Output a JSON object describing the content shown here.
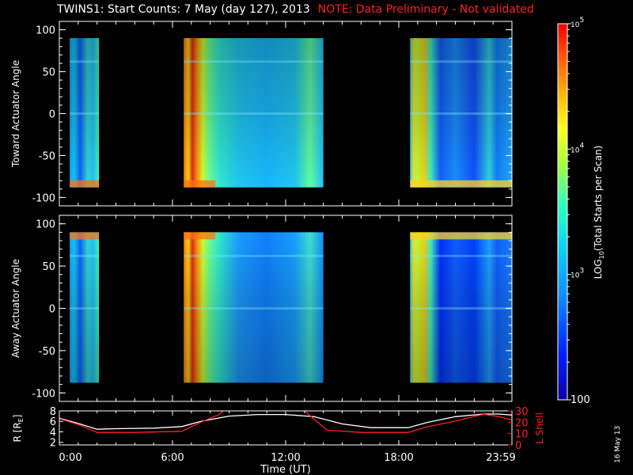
{
  "title": {
    "main": "TWINS1: Start Counts:  7 May (day 127), 2013",
    "note": "NOTE: Data Preliminary - Not validated"
  },
  "footer_date": "16 May 13",
  "colors": {
    "background": "#000000",
    "axes": "#ffffff",
    "note": "#ff2020",
    "lshell": "#ff2020",
    "r_line": "#ffffff"
  },
  "chart_data": [
    {
      "type": "heatmap",
      "ylabel": "Toward Actuator Angle",
      "yticks": [
        "100",
        "50",
        "0",
        "-50",
        "-100"
      ],
      "ylim": [
        -110,
        110
      ],
      "xlim": [
        0,
        24
      ],
      "data_range_y": [
        -88,
        90
      ],
      "data_segments_hours": [
        [
          0.55,
          2.1
        ],
        [
          6.6,
          14.0
        ],
        [
          18.6,
          24.0
        ]
      ],
      "colormap": "rainbow (blue=low, red=high), log scale",
      "profile": [
        [
          0.55,
          "#1aa0ff"
        ],
        [
          0.8,
          "#12c8f0"
        ],
        [
          1.1,
          "#1060ff"
        ],
        [
          1.5,
          "#30d8d0"
        ],
        [
          1.8,
          "#22c0ff"
        ],
        [
          2.1,
          "#40ffb0"
        ],
        [
          6.6,
          "#ff8010"
        ],
        [
          6.85,
          "#ffd010"
        ],
        [
          7.05,
          "#e03010"
        ],
        [
          7.3,
          "#ff9010"
        ],
        [
          7.6,
          "#d0ff30"
        ],
        [
          8.0,
          "#60ffa0"
        ],
        [
          8.5,
          "#30e8d0"
        ],
        [
          9.5,
          "#20c8f0"
        ],
        [
          11.0,
          "#18b8ff"
        ],
        [
          12.5,
          "#20c8f0"
        ],
        [
          13.3,
          "#60ffa0"
        ],
        [
          14.0,
          "#20c0ff"
        ],
        [
          18.6,
          "#30d8e0"
        ],
        [
          18.8,
          "#ffe020"
        ],
        [
          19.0,
          "#b0ff40"
        ],
        [
          19.3,
          "#ffd010"
        ],
        [
          19.7,
          "#40f0c0"
        ],
        [
          20.2,
          "#1060ff"
        ],
        [
          21.0,
          "#1a90ff"
        ],
        [
          22.0,
          "#1050ff"
        ],
        [
          22.8,
          "#30d0e0"
        ],
        [
          23.2,
          "#1080ff"
        ],
        [
          24.0,
          "#20a8ff"
        ]
      ],
      "extreme_side": "bottom"
    },
    {
      "type": "heatmap",
      "ylabel": "Away Actuator Angle",
      "yticks": [
        "100",
        "50",
        "0",
        "-50",
        "-100"
      ],
      "ylim": [
        -110,
        110
      ],
      "xlim": [
        0,
        24
      ],
      "data_range_y": [
        -88,
        90
      ],
      "data_segments_hours": [
        [
          0.55,
          2.1
        ],
        [
          6.6,
          14.0
        ],
        [
          18.6,
          24.0
        ]
      ],
      "colormap": "rainbow (blue=low, red=high), log scale",
      "profile": [
        [
          0.55,
          "#1aa0ff"
        ],
        [
          0.8,
          "#12c8f0"
        ],
        [
          1.1,
          "#1060ff"
        ],
        [
          1.5,
          "#30d8d0"
        ],
        [
          1.8,
          "#22c0ff"
        ],
        [
          2.1,
          "#40ffb0"
        ],
        [
          6.6,
          "#ff8010"
        ],
        [
          6.85,
          "#ffd010"
        ],
        [
          7.05,
          "#e03010"
        ],
        [
          7.3,
          "#ff9010"
        ],
        [
          7.6,
          "#d0ff30"
        ],
        [
          8.0,
          "#60ffa0"
        ],
        [
          8.5,
          "#30e8d0"
        ],
        [
          9.5,
          "#1a9cff"
        ],
        [
          11.0,
          "#1080ff"
        ],
        [
          12.5,
          "#18a0ff"
        ],
        [
          13.3,
          "#40e0d0"
        ],
        [
          14.0,
          "#1090ff"
        ],
        [
          18.6,
          "#30d8e0"
        ],
        [
          18.8,
          "#ffe020"
        ],
        [
          19.0,
          "#b0ff40"
        ],
        [
          19.3,
          "#ffd010"
        ],
        [
          19.7,
          "#40f0c0"
        ],
        [
          20.2,
          "#0030ff"
        ],
        [
          21.0,
          "#1060ff"
        ],
        [
          22.0,
          "#0040ff"
        ],
        [
          22.8,
          "#20a0ff"
        ],
        [
          23.2,
          "#1060ff"
        ],
        [
          24.0,
          "#1880ff"
        ]
      ],
      "extreme_side": "top"
    },
    {
      "type": "line",
      "ylabel": "R [R",
      "ylabel_sub": "E",
      "ylabel_tail": "]",
      "yticks": [
        "8",
        "6",
        "4",
        "2"
      ],
      "ylim": [
        1.5,
        8.0
      ],
      "y2label": "L Shell",
      "y2ticks": [
        "30",
        "20",
        "10",
        "0"
      ],
      "y2lim": [
        0,
        30
      ],
      "xlabel": "Time (UT)",
      "xticks": [
        "0:00",
        "6:00",
        "12:00",
        "18:00",
        "23:59"
      ],
      "xlim": [
        0,
        24
      ],
      "series": [
        {
          "axis": "left",
          "x": [
            0,
            1,
            2,
            3,
            5,
            6.5,
            7.5,
            9,
            10.5,
            12,
            13.5,
            15,
            16.5,
            18.5,
            19.5,
            21,
            22.5,
            23.3,
            24
          ],
          "y": [
            6.6,
            5.6,
            4.5,
            4.6,
            4.7,
            5.0,
            6.0,
            7.0,
            7.3,
            7.3,
            6.9,
            5.5,
            4.8,
            4.8,
            5.8,
            6.9,
            7.4,
            7.4,
            7.2
          ]
        },
        {
          "axis": "right",
          "x": [
            0,
            1,
            2,
            4,
            6.5,
            7.5,
            8.5,
            9.2,
            12.5,
            13.2,
            14.2,
            16,
            18.5,
            19.5,
            21,
            22.5,
            23.3,
            24
          ],
          "y": [
            23,
            18,
            11,
            11,
            12,
            20,
            27,
            40,
            40,
            27,
            13,
            11,
            11,
            16,
            21,
            27,
            25,
            22
          ]
        }
      ]
    },
    {
      "type": "colorbar",
      "label": "LOG",
      "label_sub": "10",
      "label_tail": "(Total Starts per Scan)",
      "scale": "log",
      "range": [
        100,
        100000
      ],
      "ticks": [
        {
          "value": 100000,
          "base": "10",
          "exp": "5"
        },
        {
          "value": 10000,
          "base": "10",
          "exp": "4"
        },
        {
          "value": 1000,
          "base": "10",
          "exp": "3"
        },
        {
          "value": 100,
          "base": "100",
          "exp": ""
        }
      ]
    }
  ]
}
